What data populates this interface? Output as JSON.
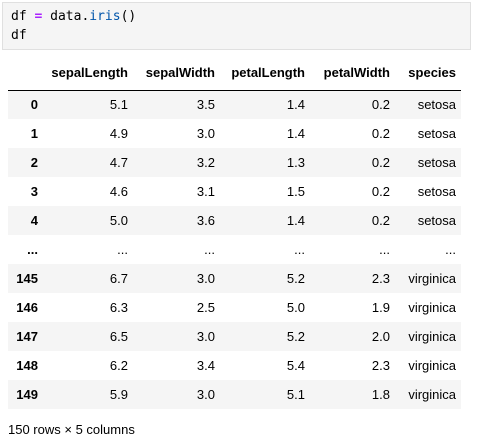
{
  "code_cell": {
    "lines": [
      [
        {
          "text": "df ",
          "kind": "plain"
        },
        {
          "text": "=",
          "kind": "op"
        },
        {
          "text": " data.",
          "kind": "plain"
        },
        {
          "text": "iris",
          "kind": "fn"
        },
        {
          "text": "()",
          "kind": "plain"
        }
      ],
      [
        {
          "text": "df",
          "kind": "plain"
        }
      ]
    ]
  },
  "table": {
    "index_header": "",
    "columns": [
      "sepalLength",
      "sepalWidth",
      "petalLength",
      "petalWidth",
      "species"
    ],
    "rows": [
      {
        "index": "0",
        "cells": [
          "5.1",
          "3.5",
          "1.4",
          "0.2",
          "setosa"
        ]
      },
      {
        "index": "1",
        "cells": [
          "4.9",
          "3.0",
          "1.4",
          "0.2",
          "setosa"
        ]
      },
      {
        "index": "2",
        "cells": [
          "4.7",
          "3.2",
          "1.3",
          "0.2",
          "setosa"
        ]
      },
      {
        "index": "3",
        "cells": [
          "4.6",
          "3.1",
          "1.5",
          "0.2",
          "setosa"
        ]
      },
      {
        "index": "4",
        "cells": [
          "5.0",
          "3.6",
          "1.4",
          "0.2",
          "setosa"
        ]
      },
      {
        "index": "...",
        "cells": [
          "...",
          "...",
          "...",
          "...",
          "..."
        ]
      },
      {
        "index": "145",
        "cells": [
          "6.7",
          "3.0",
          "5.2",
          "2.3",
          "virginica"
        ]
      },
      {
        "index": "146",
        "cells": [
          "6.3",
          "2.5",
          "5.0",
          "1.9",
          "virginica"
        ]
      },
      {
        "index": "147",
        "cells": [
          "6.5",
          "3.0",
          "5.2",
          "2.0",
          "virginica"
        ]
      },
      {
        "index": "148",
        "cells": [
          "6.2",
          "3.4",
          "5.4",
          "2.3",
          "virginica"
        ]
      },
      {
        "index": "149",
        "cells": [
          "5.9",
          "3.0",
          "5.1",
          "1.8",
          "virginica"
        ]
      }
    ]
  },
  "summary": "150 rows × 5 columns",
  "colors": {
    "code_background": "#f5f5f5",
    "operator": "#aa22ff",
    "function": "#0055aa",
    "stripe": "#f5f5f5"
  }
}
